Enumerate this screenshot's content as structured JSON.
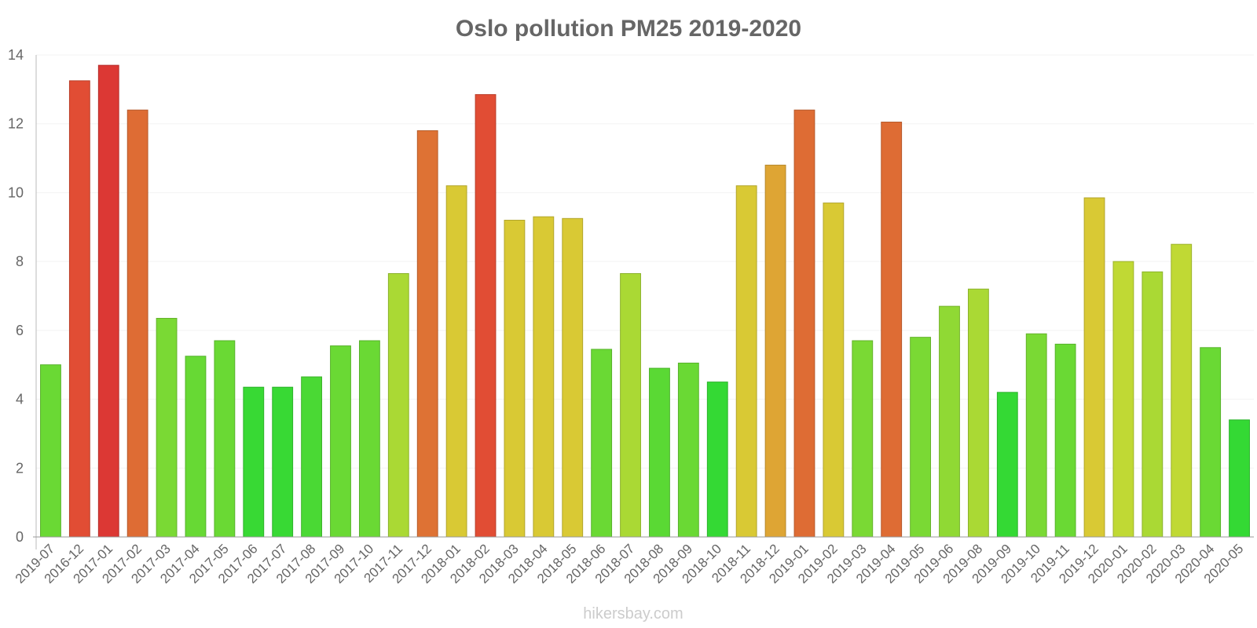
{
  "chart_data": {
    "type": "bar",
    "title": "Oslo pollution PM25 2019-2020",
    "xlabel": "",
    "ylabel": "",
    "ylim": [
      0,
      14
    ],
    "yticks": [
      0,
      2,
      4,
      6,
      8,
      10,
      12,
      14
    ],
    "grid": true,
    "categories": [
      "2019-07",
      "2016-12",
      "2017-01",
      "2017-02",
      "2017-03",
      "2017-04",
      "2017-05",
      "2017-06",
      "2017-07",
      "2017-08",
      "2017-09",
      "2017-10",
      "2017-11",
      "2017-12",
      "2018-01",
      "2018-02",
      "2018-03",
      "2018-04",
      "2018-05",
      "2018-06",
      "2018-07",
      "2018-08",
      "2018-09",
      "2018-10",
      "2018-11",
      "2018-12",
      "2019-01",
      "2019-02",
      "2019-03",
      "2019-04",
      "2019-05",
      "2019-06",
      "2019-08",
      "2019-09",
      "2019-10",
      "2019-11",
      "2019-12",
      "2020-01",
      "2020-02",
      "2020-03",
      "2020-04",
      "2020-05"
    ],
    "values": [
      5.0,
      13.25,
      13.7,
      12.4,
      6.35,
      5.25,
      5.7,
      4.35,
      4.35,
      4.65,
      5.55,
      5.7,
      7.65,
      11.8,
      10.2,
      12.85,
      9.2,
      9.3,
      9.25,
      5.45,
      7.65,
      4.9,
      5.05,
      4.5,
      10.2,
      10.8,
      12.4,
      9.7,
      5.7,
      12.05,
      5.8,
      6.7,
      7.2,
      4.2,
      5.9,
      5.6,
      9.85,
      8.0,
      7.7,
      8.5,
      5.5,
      3.4
    ],
    "colors": [
      "#6ad934",
      "#e14d34",
      "#dc3834",
      "#de6c34",
      "#7ad934",
      "#67d934",
      "#6ad934",
      "#38d934",
      "#38d934",
      "#4ad934",
      "#6ad934",
      "#6ad934",
      "#aad934",
      "#de7234",
      "#d9c934",
      "#e14d34",
      "#d9c934",
      "#d9c934",
      "#d9c934",
      "#6ad934",
      "#aad934",
      "#5ad934",
      "#6ad934",
      "#34d934",
      "#d9c934",
      "#dea534",
      "#de6c34",
      "#d9c934",
      "#7ad934",
      "#de6c34",
      "#7ad934",
      "#90d934",
      "#aad934",
      "#34d934",
      "#7ad934",
      "#6ad934",
      "#d9c934",
      "#c0d934",
      "#aad934",
      "#c0d934",
      "#6ad934",
      "#34d934"
    ]
  },
  "watermark": "hikersbay.com"
}
